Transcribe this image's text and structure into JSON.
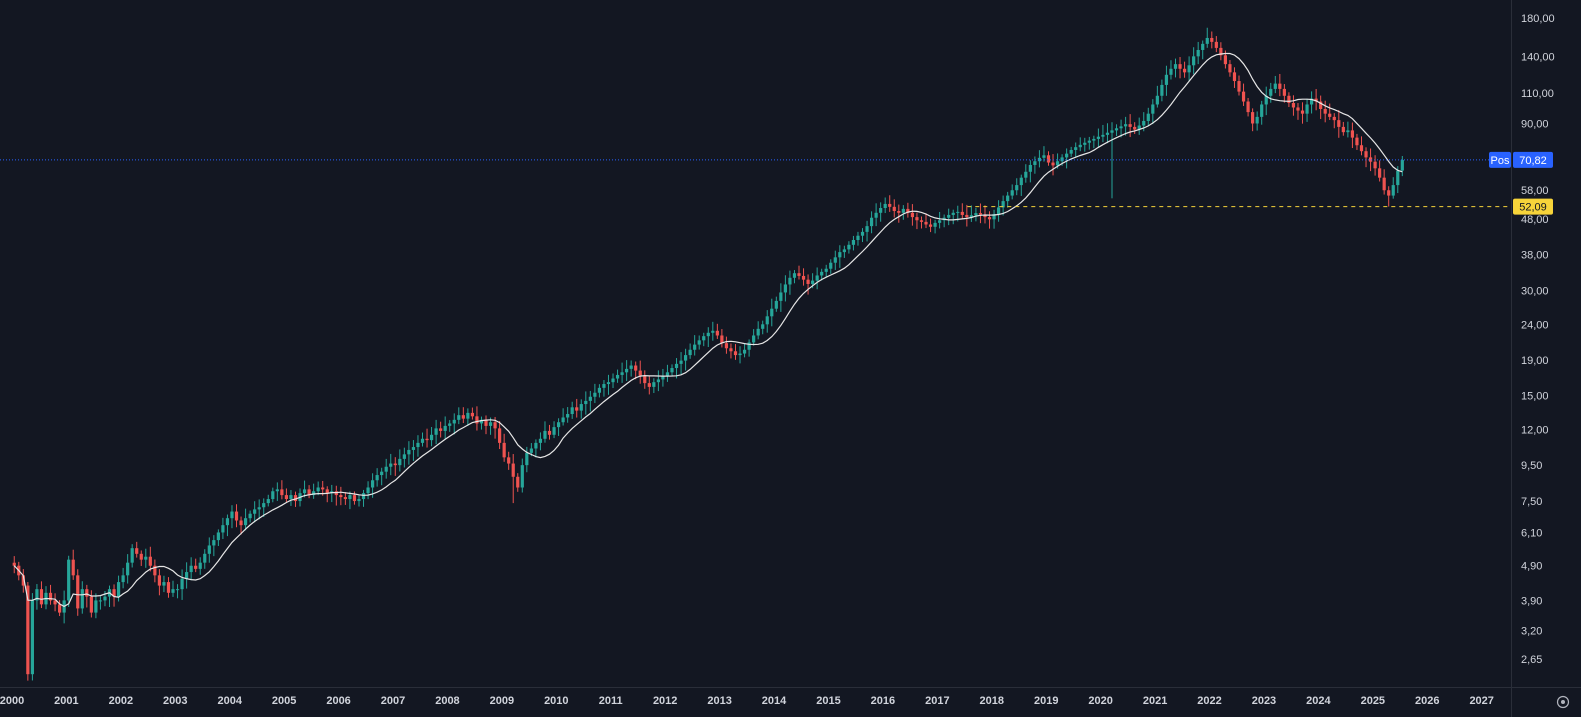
{
  "chart_data": {
    "type": "candlestick",
    "scale": "log",
    "grid": false,
    "x_labels": [
      "2000",
      "2001",
      "2002",
      "2003",
      "2004",
      "2005",
      "2006",
      "2007",
      "2008",
      "2009",
      "2010",
      "2011",
      "2012",
      "2013",
      "2014",
      "2015",
      "2016",
      "2017",
      "2018",
      "2019",
      "2020",
      "2021",
      "2022",
      "2023",
      "2024",
      "2025",
      "2026",
      "2027"
    ],
    "y_labels": [
      "180,00",
      "140,00",
      "110,00",
      "90,00",
      "71,00",
      "58,00",
      "48,00",
      "38,00",
      "30,00",
      "24,00",
      "19,00",
      "15,00",
      "12,00",
      "9,50",
      "7,50",
      "6,10",
      "4,90",
      "3,90",
      "3,20",
      "2,65"
    ],
    "y_label_values": [
      180,
      140,
      110,
      90,
      71,
      58,
      48,
      38,
      30,
      24,
      19,
      15,
      12,
      9.5,
      7.5,
      6.1,
      4.9,
      3.9,
      3.2,
      2.65
    ],
    "ylim": [
      2.25,
      195
    ],
    "xlim": [
      1999.78,
      2027.52
    ],
    "ma_period": 10,
    "closes_by_year": [
      {
        "year": 2000,
        "closes": [
          4.9,
          4.6,
          4.3,
          2.4,
          3.9,
          4.2,
          3.8,
          4.1,
          3.9,
          3.8,
          3.6,
          3.9
        ]
      },
      {
        "year": 2001,
        "closes": [
          5.1,
          4.6,
          3.7,
          4.2,
          4.0,
          3.6,
          3.9,
          3.9,
          4.0,
          4.2,
          4.0,
          4.4
        ]
      },
      {
        "year": 2002,
        "closes": [
          4.6,
          5.0,
          5.5,
          5.3,
          5.1,
          5.2,
          4.9,
          4.6,
          4.3,
          4.4,
          4.1,
          4.2
        ]
      },
      {
        "year": 2003,
        "closes": [
          4.2,
          4.5,
          4.7,
          4.9,
          4.8,
          5.0,
          5.3,
          5.6,
          5.8,
          6.1,
          6.4,
          6.7
        ]
      },
      {
        "year": 2004,
        "closes": [
          7.0,
          6.6,
          6.4,
          6.7,
          6.9,
          7.1,
          7.2,
          7.4,
          7.6,
          8.0,
          8.1,
          7.8
        ]
      },
      {
        "year": 2005,
        "closes": [
          7.6,
          7.8,
          7.5,
          7.9,
          8.1,
          7.8,
          8.0,
          8.2,
          8.1,
          7.9,
          8.0,
          7.8
        ]
      },
      {
        "year": 2006,
        "closes": [
          7.7,
          7.6,
          7.8,
          7.5,
          7.6,
          7.9,
          8.2,
          8.6,
          8.9,
          9.1,
          9.4,
          9.6
        ]
      },
      {
        "year": 2007,
        "closes": [
          9.5,
          9.9,
          10.2,
          10.5,
          10.7,
          11.0,
          11.3,
          11.2,
          11.6,
          12.1,
          11.9,
          12.3
        ]
      },
      {
        "year": 2008,
        "closes": [
          12.5,
          12.8,
          13.2,
          12.9,
          13.4,
          13.1,
          12.5,
          12.8,
          12.3,
          12.6,
          12.1,
          11.0
        ]
      },
      {
        "year": 2009,
        "closes": [
          10.0,
          9.6,
          8.8,
          8.2,
          9.5,
          10.3,
          10.6,
          11.0,
          11.3,
          11.9,
          11.6,
          12.2
        ]
      },
      {
        "year": 2010,
        "closes": [
          12.6,
          13.0,
          13.3,
          13.9,
          13.6,
          14.2,
          14.5,
          14.9,
          15.3,
          15.8,
          16.2,
          16.4
        ]
      },
      {
        "year": 2011,
        "closes": [
          16.8,
          17.2,
          17.5,
          17.9,
          18.3,
          17.7,
          17.1,
          16.3,
          15.9,
          16.4,
          16.7,
          17.1
        ]
      },
      {
        "year": 2012,
        "closes": [
          17.5,
          18.0,
          18.5,
          18.9,
          19.6,
          20.3,
          21.0,
          21.6,
          22.2,
          22.7,
          23.0,
          22.3
        ]
      },
      {
        "year": 2013,
        "closes": [
          21.2,
          20.5,
          20.1,
          19.6,
          19.8,
          20.3,
          21.3,
          22.3,
          23.3,
          24.0,
          25.3,
          26.6
        ]
      },
      {
        "year": 2014,
        "closes": [
          28.0,
          29.6,
          31.2,
          32.6,
          33.6,
          33.0,
          32.2,
          31.3,
          32.0,
          33.1,
          33.9,
          34.6
        ]
      },
      {
        "year": 2015,
        "closes": [
          36.0,
          37.3,
          38.6,
          39.3,
          40.5,
          41.8,
          43.0,
          44.1,
          45.8,
          48.4,
          50.0,
          51.6
        ]
      },
      {
        "year": 2016,
        "closes": [
          53.0,
          52.0,
          50.6,
          50.0,
          51.3,
          50.0,
          48.6,
          47.6,
          47.1,
          46.3,
          45.6,
          46.8
        ]
      },
      {
        "year": 2017,
        "closes": [
          47.6,
          48.4,
          49.3,
          50.0,
          50.3,
          49.3,
          48.6,
          49.2,
          49.9,
          49.4,
          48.6,
          47.9
        ]
      },
      {
        "year": 2018,
        "closes": [
          49.6,
          51.8,
          54.0,
          56.0,
          58.0,
          60.0,
          63.0,
          65.5,
          68.5,
          70.2,
          71.8,
          73.0
        ]
      },
      {
        "year": 2019,
        "closes": [
          69.6,
          68.3,
          70.2,
          72.0,
          73.8,
          75.6,
          77.0,
          78.2,
          79.3,
          80.4,
          81.3,
          82.5
        ]
      },
      {
        "year": 2020,
        "closes": [
          83.5,
          84.7,
          86.0,
          87.2,
          88.3,
          89.6,
          88.0,
          86.5,
          88.8,
          91.5,
          96.0,
          102.0
        ]
      },
      {
        "year": 2021,
        "closes": [
          108.0,
          116.0,
          124.0,
          129.0,
          133.0,
          129.0,
          126.0,
          132.0,
          140.0,
          146.0,
          152.0,
          158.0
        ]
      },
      {
        "year": 2022,
        "closes": [
          154.0,
          148.0,
          141.0,
          133.0,
          126.0,
          119.0,
          111.0,
          104.0,
          97.0,
          90.0,
          94.0,
          102.0
        ]
      },
      {
        "year": 2023,
        "closes": [
          108.0,
          113.0,
          117.0,
          113.0,
          108.0,
          103.0,
          100.0,
          98.0,
          96.0,
          102.0,
          106.0,
          104.0
        ]
      },
      {
        "year": 2024,
        "closes": [
          99.0,
          96.0,
          94.0,
          92.0,
          88.0,
          85.0,
          86.0,
          82.0,
          78.0,
          75.0,
          72.0,
          70.0
        ]
      },
      {
        "year": 2025,
        "closes": [
          67.0,
          63.0,
          58.0,
          56.0,
          60.0,
          66.0,
          70.82
        ]
      }
    ],
    "low_wicks": [
      {
        "year": 2000,
        "month": 4,
        "low": 2.3
      },
      {
        "year": 2009,
        "month": 3,
        "low": 7.4
      },
      {
        "year": 2020,
        "month": 3,
        "low": 55.0
      },
      {
        "year": 2025,
        "month": 4,
        "low": 52.09
      }
    ],
    "last_price": 70.82,
    "last_price_label": "70,82",
    "position_label": "Pos",
    "support_level": 52.09,
    "support_label": "52,09",
    "colors": {
      "background": "#131722",
      "up": "#26a69a",
      "down": "#ef5350",
      "moving_average": "#e6e6e6",
      "price_line": "#2962ff",
      "support_line": "#f7d43a",
      "axis_text": "#d1d4dc"
    }
  }
}
